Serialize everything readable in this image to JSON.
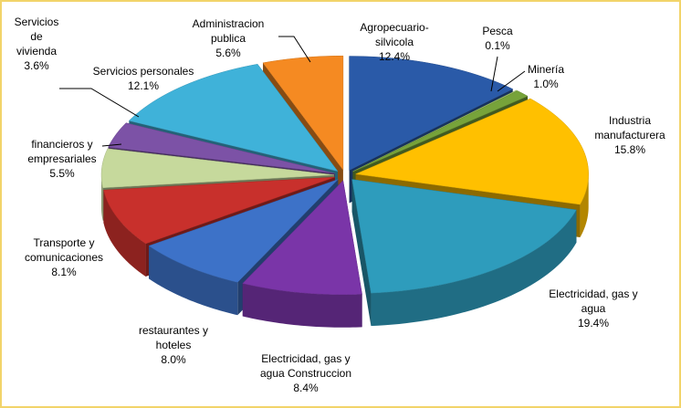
{
  "chart_data": {
    "type": "pie3d",
    "categories": [
      "Agropecuario-\nsilvicola",
      "Pesca",
      "Minería",
      "Industria\nmanufacturera",
      "Electricidad, gas y\nagua",
      "Electricidad, gas y\nagua Construccion",
      "restaurantes y\nhoteles",
      "Transporte y\ncomunicaciones",
      "financieros y\nempresariales",
      "Servicios\nde\nvivienda",
      "Servicios personales",
      "Administracion\npublica"
    ],
    "values": [
      12.4,
      0.1,
      1.0,
      15.8,
      19.4,
      8.4,
      8.0,
      8.1,
      5.5,
      3.6,
      12.1,
      5.6
    ],
    "value_labels": [
      "12.4%",
      "0.1%",
      "1.0%",
      "15.8%",
      "19.4%",
      "8.4%",
      "8.0%",
      "8.1%",
      "5.5%",
      "3.6%",
      "12.1%",
      "5.6%"
    ],
    "colors": [
      "#2a5aa8",
      "#a6c96a",
      "#77a33a",
      "#ffc000",
      "#2e9cbc",
      "#7a35a8",
      "#3d72c8",
      "#c8302c",
      "#c6d99c",
      "#7c52a6",
      "#3fb2d9",
      "#f58a22"
    ]
  }
}
